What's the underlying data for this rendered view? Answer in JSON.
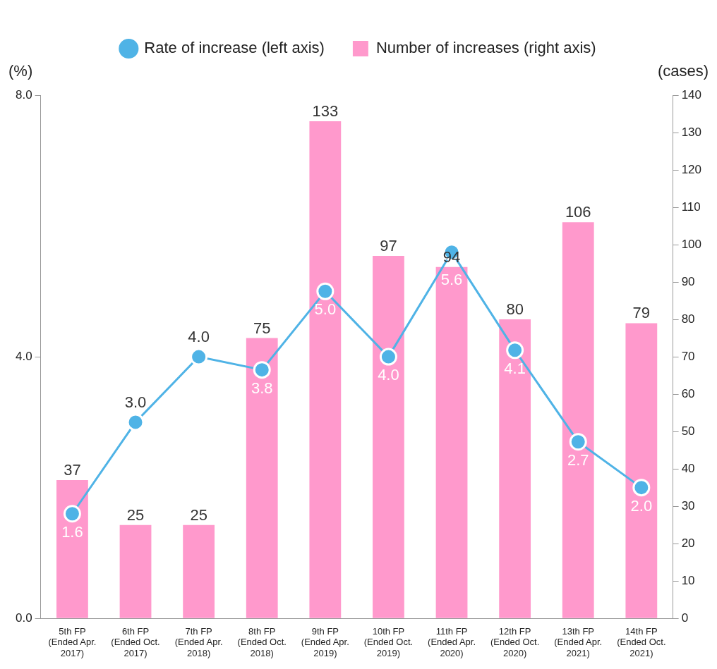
{
  "chart_data": {
    "type": "bar",
    "categories": [
      "5th FP (Ended Apr. 2017)",
      "6th FP (Ended Oct. 2017)",
      "7th FP (Ended Apr. 2018)",
      "8th FP (Ended Oct. 2018)",
      "9th FP (Ended Apr. 2019)",
      "10th FP (Ended Oct. 2019)",
      "11th FP (Ended Apr. 2020)",
      "12th FP (Ended Oct. 2020)",
      "13th FP (Ended Apr. 2021)",
      "14th FP (Ended Oct. 2021)"
    ],
    "series": [
      {
        "name": "Rate of increase (left axis)",
        "type": "line",
        "color": "#4fb3e6",
        "values": [
          1.6,
          3.0,
          4.0,
          3.8,
          5.0,
          4.0,
          5.6,
          4.1,
          2.7,
          2.0
        ],
        "value_labels": [
          "1.6",
          "3.0",
          "4.0",
          "3.8",
          "5.0",
          "4.0",
          "5.6",
          "4.1",
          "2.7",
          "2.0"
        ]
      },
      {
        "name": "Number of increases (right axis)",
        "axis": "y2",
        "color": "#ff99cc",
        "values": [
          37,
          25,
          25,
          75,
          133,
          97,
          94,
          80,
          106,
          79
        ]
      }
    ],
    "ylabel": "(%)",
    "y2label": "(cases)",
    "ylim": [
      0,
      8
    ],
    "yticks": [
      {
        "value": 0,
        "label": "0.0"
      },
      {
        "value": 4,
        "label": "4.0"
      },
      {
        "value": 8,
        "label": "8.0"
      }
    ],
    "y2lim": [
      0,
      140
    ],
    "y2ticks": [
      0,
      10,
      20,
      30,
      40,
      50,
      60,
      70,
      80,
      90,
      100,
      110,
      120,
      130,
      140
    ],
    "data_labels": true,
    "grid": false,
    "legend": "top",
    "marker": "circle"
  }
}
